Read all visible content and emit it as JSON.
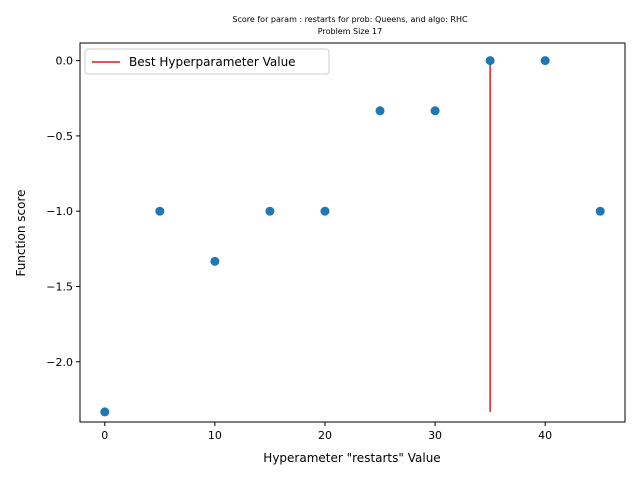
{
  "chart_data": {
    "type": "scatter",
    "title_line1": "Score for param : restarts for prob: Queens, and algo: RHC",
    "title_line2": "Problem Size 17",
    "xlabel": "Hyperameter \"restarts\" Value",
    "ylabel": "Function score",
    "xlim": [
      -2.25,
      47.25
    ],
    "ylim": [
      -2.4,
      0.117
    ],
    "x_ticks": [
      0,
      10,
      20,
      30,
      40
    ],
    "y_ticks": [
      0.0,
      -0.5,
      -1.0,
      -1.5,
      -2.0
    ],
    "y_tick_labels": [
      "0.0",
      "−0.5",
      "−1.0",
      "−1.5",
      "−2.0"
    ],
    "points": [
      {
        "x": 0,
        "y": -2.333
      },
      {
        "x": 5,
        "y": -1.0
      },
      {
        "x": 10,
        "y": -1.333
      },
      {
        "x": 15,
        "y": -1.0
      },
      {
        "x": 20,
        "y": -1.0
      },
      {
        "x": 25,
        "y": -0.333
      },
      {
        "x": 30,
        "y": -0.333
      },
      {
        "x": 35,
        "y": 0.0
      },
      {
        "x": 40,
        "y": 0.0
      },
      {
        "x": 45,
        "y": -1.0
      }
    ],
    "best_line": {
      "x": 35,
      "y_from": -2.333,
      "y_to": 0.0
    },
    "legend": {
      "label": "Best Hyperparameter Value",
      "placement": "upper-left"
    },
    "grid": false,
    "colors": {
      "points": "#1f77b4",
      "best_line": "#e41a1c",
      "axes": "#000000"
    }
  }
}
